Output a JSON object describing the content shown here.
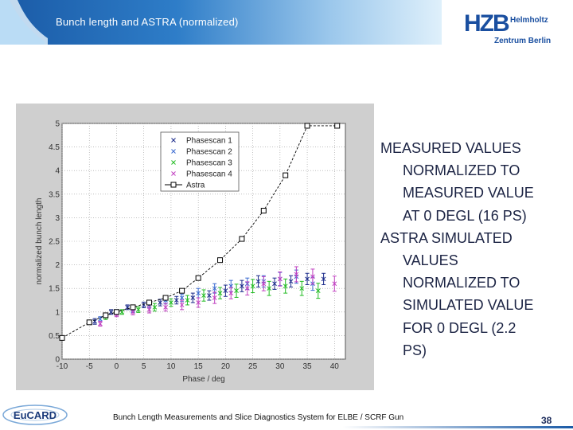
{
  "header": {
    "title": "Bunch length and ASTRA (normalized)"
  },
  "logo": {
    "mark": "HZB",
    "line1": "Helmholtz",
    "line2": "Zentrum Berlin"
  },
  "chart_data": {
    "type": "scatter",
    "title": "",
    "xlabel": "Phase / deg",
    "ylabel": "normalized bunch length",
    "xlim": [
      -10,
      42
    ],
    "ylim": [
      0,
      5
    ],
    "xticks": [
      -10,
      -5,
      0,
      5,
      10,
      15,
      20,
      25,
      30,
      35,
      40
    ],
    "xtick_labels": [
      "-10",
      "-5",
      "0",
      "5",
      "10",
      "15",
      "20",
      "25",
      "30",
      "35",
      "40"
    ],
    "yticks": [
      0,
      0.5,
      1,
      1.5,
      2,
      2.5,
      3,
      3.5,
      4,
      4.5,
      5
    ],
    "ytick_labels": [
      "0",
      "0.5",
      "1",
      "1.5",
      "2",
      "2.5",
      "3",
      "3.5",
      "4",
      "4.5",
      "5"
    ],
    "grid": true,
    "legend": "top-center",
    "series": [
      {
        "name": "Phasescan 1",
        "color": "#1a2a8a",
        "marker": "x",
        "x": [
          -4,
          -1,
          2,
          5,
          8,
          11,
          14,
          17,
          20,
          23,
          26,
          29,
          32,
          35,
          38
        ],
        "y": [
          0.8,
          1.0,
          1.1,
          1.15,
          1.2,
          1.25,
          1.3,
          1.35,
          1.45,
          1.55,
          1.65,
          1.6,
          1.65,
          1.7,
          1.7
        ],
        "err": [
          0.06,
          0.05,
          0.05,
          0.06,
          0.07,
          0.08,
          0.1,
          0.1,
          0.12,
          0.12,
          0.12,
          0.12,
          0.12,
          0.12,
          0.12
        ]
      },
      {
        "name": "Phasescan 2",
        "color": "#3a6ad0",
        "marker": "x",
        "x": [
          -3,
          0,
          3,
          6,
          9,
          12,
          15,
          18,
          21,
          24,
          27,
          30,
          33,
          36
        ],
        "y": [
          0.85,
          1.0,
          1.05,
          1.15,
          1.25,
          1.3,
          1.4,
          1.5,
          1.55,
          1.6,
          1.65,
          1.7,
          1.75,
          1.6
        ],
        "err": [
          0.05,
          0.05,
          0.06,
          0.06,
          0.08,
          0.08,
          0.1,
          0.1,
          0.12,
          0.12,
          0.12,
          0.14,
          0.14,
          0.14
        ]
      },
      {
        "name": "Phasescan 3",
        "color": "#22bb22",
        "marker": "x",
        "x": [
          -2,
          1,
          4,
          7,
          10,
          13,
          16,
          19,
          22,
          25,
          28,
          31,
          34,
          37
        ],
        "y": [
          0.9,
          1.0,
          1.05,
          1.1,
          1.2,
          1.25,
          1.35,
          1.4,
          1.45,
          1.55,
          1.5,
          1.55,
          1.5,
          1.45
        ],
        "err": [
          0.06,
          0.05,
          0.06,
          0.08,
          0.08,
          0.1,
          0.12,
          0.12,
          0.14,
          0.14,
          0.15,
          0.15,
          0.15,
          0.16
        ]
      },
      {
        "name": "Phasescan 4",
        "color": "#c040c0",
        "marker": "x",
        "x": [
          -3,
          0,
          3,
          6,
          9,
          12,
          15,
          18,
          21,
          24,
          27,
          30,
          33,
          36,
          40
        ],
        "y": [
          0.75,
          0.95,
          1.0,
          1.05,
          1.1,
          1.15,
          1.2,
          1.3,
          1.4,
          1.5,
          1.6,
          1.7,
          1.8,
          1.75,
          1.6
        ],
        "err": [
          0.05,
          0.05,
          0.06,
          0.07,
          0.08,
          0.1,
          0.1,
          0.12,
          0.12,
          0.14,
          0.15,
          0.15,
          0.16,
          0.16,
          0.16
        ]
      },
      {
        "name": "Astra",
        "color": "#000000",
        "marker": "square",
        "line": true,
        "x": [
          -10,
          -5,
          -2,
          0,
          3,
          6,
          9,
          12,
          15,
          19,
          23,
          27,
          31,
          35,
          40.5
        ],
        "y": [
          0.45,
          0.78,
          0.93,
          1.0,
          1.1,
          1.2,
          1.3,
          1.45,
          1.72,
          2.1,
          2.55,
          3.15,
          3.9,
          4.95,
          4.95
        ]
      }
    ]
  },
  "bullets": [
    {
      "line1": "MEASURED VALUES",
      "rest": [
        "NORMALIZED TO",
        "MEASURED VALUE",
        "AT 0 DEGL (16 PS)"
      ]
    },
    {
      "line1": "ASTRA SIMULATED",
      "rest": [
        "VALUES",
        "NORMALIZED TO",
        "SIMULATED VALUE",
        "FOR 0 DEGL (2.2",
        "PS)"
      ]
    }
  ],
  "footer": {
    "text": "Bunch Length Measurements and Slice Diagnostics System for ELBE / SCRF Gun",
    "page": "38",
    "eucard_label": "EuCARD"
  },
  "colors": {
    "accent": "#1a5aa6",
    "bullet_text": "#1c2444"
  }
}
